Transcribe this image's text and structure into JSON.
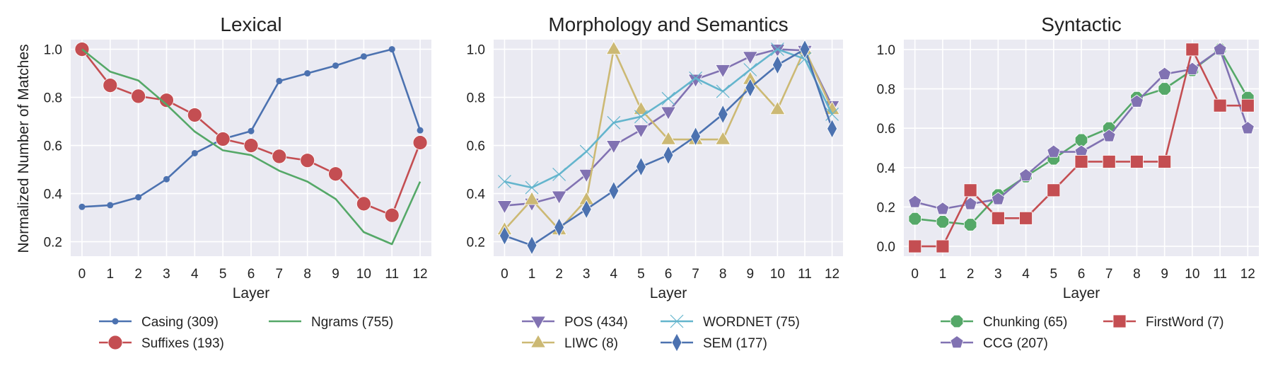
{
  "figure": {
    "ylabel": "Normalized Number of Matches"
  },
  "chart_data": [
    {
      "type": "line",
      "title": "Lexical",
      "xlabel": "Layer",
      "x": [
        0,
        1,
        2,
        3,
        4,
        5,
        6,
        7,
        8,
        9,
        10,
        11,
        12
      ],
      "xlim": [
        -0.4,
        12.4
      ],
      "ylim": [
        0.14,
        1.04
      ],
      "yticks": [
        0.2,
        0.4,
        0.6,
        0.8,
        1.0
      ],
      "legend_columns": 2,
      "series": [
        {
          "name": "Casing (309)",
          "color": "#4c72b0",
          "marker": "dot",
          "values": [
            0.345,
            0.352,
            0.385,
            0.46,
            0.568,
            0.627,
            0.66,
            0.868,
            0.9,
            0.932,
            0.97,
            1.0,
            0.663
          ]
        },
        {
          "name": "Suffixes (193)",
          "color": "#c44e52",
          "marker": "circle",
          "values": [
            1.0,
            0.85,
            0.805,
            0.788,
            0.727,
            0.627,
            0.6,
            0.555,
            0.538,
            0.482,
            0.358,
            0.31,
            0.612
          ]
        },
        {
          "name": "Ngrams (755)",
          "color": "#55a868",
          "marker": "none",
          "values": [
            1.0,
            0.907,
            0.87,
            0.77,
            0.658,
            0.58,
            0.56,
            0.495,
            0.45,
            0.378,
            0.24,
            0.19,
            0.45
          ]
        }
      ]
    },
    {
      "type": "line",
      "title": "Morphology and Semantics",
      "xlabel": "Layer",
      "x": [
        0,
        1,
        2,
        3,
        4,
        5,
        6,
        7,
        8,
        9,
        10,
        11,
        12
      ],
      "xlim": [
        -0.4,
        12.4
      ],
      "ylim": [
        0.14,
        1.04
      ],
      "yticks": [
        0.2,
        0.4,
        0.6,
        0.8,
        1.0
      ],
      "legend_columns": 2,
      "series": [
        {
          "name": "POS (434)",
          "color": "#8172b2",
          "marker": "triangle-down",
          "values": [
            0.35,
            0.36,
            0.39,
            0.48,
            0.6,
            0.665,
            0.74,
            0.875,
            0.915,
            0.97,
            1.0,
            0.995,
            0.765
          ]
        },
        {
          "name": "LIWC (8)",
          "color": "#ccb974",
          "marker": "triangle-up",
          "values": [
            0.25,
            0.375,
            0.25,
            0.375,
            1.0,
            0.75,
            0.625,
            0.625,
            0.625,
            0.875,
            0.75,
            1.0,
            0.75
          ]
        },
        {
          "name": "WORDNET (75)",
          "color": "#64b5cd",
          "marker": "x",
          "values": [
            0.45,
            0.425,
            0.48,
            0.575,
            0.695,
            0.72,
            0.795,
            0.88,
            0.825,
            0.915,
            1.0,
            0.96,
            0.73
          ]
        },
        {
          "name": "SEM (177)",
          "color": "#4c72b0",
          "marker": "diamond",
          "values": [
            0.225,
            0.185,
            0.26,
            0.335,
            0.412,
            0.512,
            0.56,
            0.638,
            0.73,
            0.84,
            0.935,
            1.0,
            0.67
          ]
        }
      ]
    },
    {
      "type": "line",
      "title": "Syntactic",
      "xlabel": "Layer",
      "x": [
        0,
        1,
        2,
        3,
        4,
        5,
        6,
        7,
        8,
        9,
        10,
        11,
        12
      ],
      "xlim": [
        -0.4,
        12.4
      ],
      "ylim": [
        -0.05,
        1.05
      ],
      "yticks": [
        0.0,
        0.2,
        0.4,
        0.6,
        0.8,
        1.0
      ],
      "legend_columns": 2,
      "series": [
        {
          "name": "Chunking (65)",
          "color": "#55a868",
          "marker": "octagon",
          "values": [
            0.14,
            0.125,
            0.11,
            0.26,
            0.355,
            0.445,
            0.54,
            0.6,
            0.755,
            0.8,
            0.895,
            1.0,
            0.755
          ]
        },
        {
          "name": "CCG (207)",
          "color": "#8172b2",
          "marker": "pentagon",
          "values": [
            0.225,
            0.19,
            0.215,
            0.24,
            0.36,
            0.48,
            0.48,
            0.56,
            0.735,
            0.875,
            0.9,
            1.0,
            0.6
          ]
        },
        {
          "name": "FirstWord (7)",
          "color": "#c44e52",
          "marker": "square",
          "values": [
            0.0,
            0.0,
            0.285,
            0.143,
            0.143,
            0.285,
            0.43,
            0.43,
            0.43,
            0.43,
            1.0,
            0.715,
            0.715
          ]
        }
      ]
    }
  ]
}
